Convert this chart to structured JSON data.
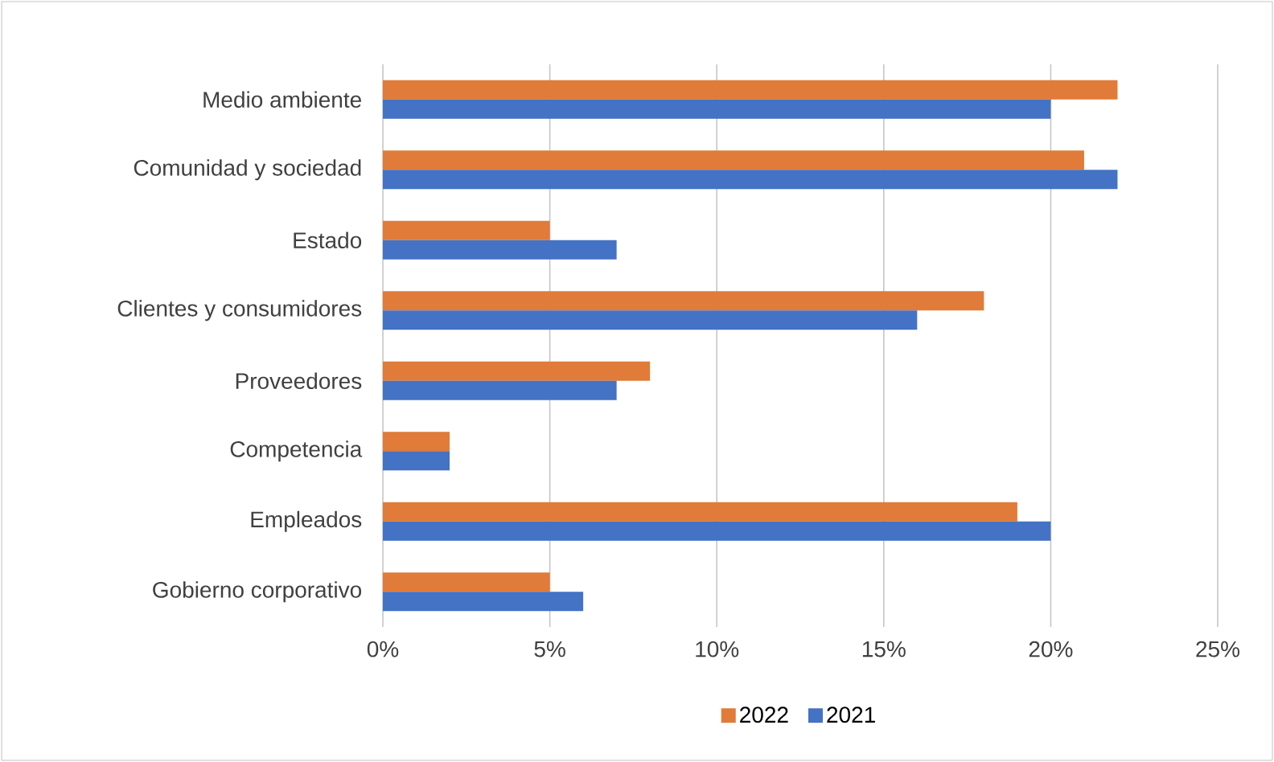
{
  "chart_data": {
    "type": "bar",
    "orientation": "horizontal",
    "categories": [
      "Medio ambiente",
      "Comunidad y sociedad",
      "Estado",
      "Clientes y consumidores",
      "Proveedores",
      "Competencia",
      "Empleados",
      "Gobierno corporativo"
    ],
    "series": [
      {
        "name": "2022",
        "color": "#e07b39",
        "values": [
          22,
          21,
          5,
          18,
          8,
          2,
          19,
          5
        ]
      },
      {
        "name": "2021",
        "color": "#4472c4",
        "values": [
          20,
          22,
          7,
          16,
          7,
          2,
          20,
          6
        ]
      }
    ],
    "xlim": [
      0,
      25
    ],
    "xticks": [
      {
        "value": 0,
        "label": "0%"
      },
      {
        "value": 5,
        "label": "5%"
      },
      {
        "value": 10,
        "label": "10%"
      },
      {
        "value": 15,
        "label": "15%"
      },
      {
        "value": 20,
        "label": "20%"
      },
      {
        "value": 25,
        "label": "25%"
      }
    ],
    "grid": "x",
    "legend": "bottom"
  }
}
